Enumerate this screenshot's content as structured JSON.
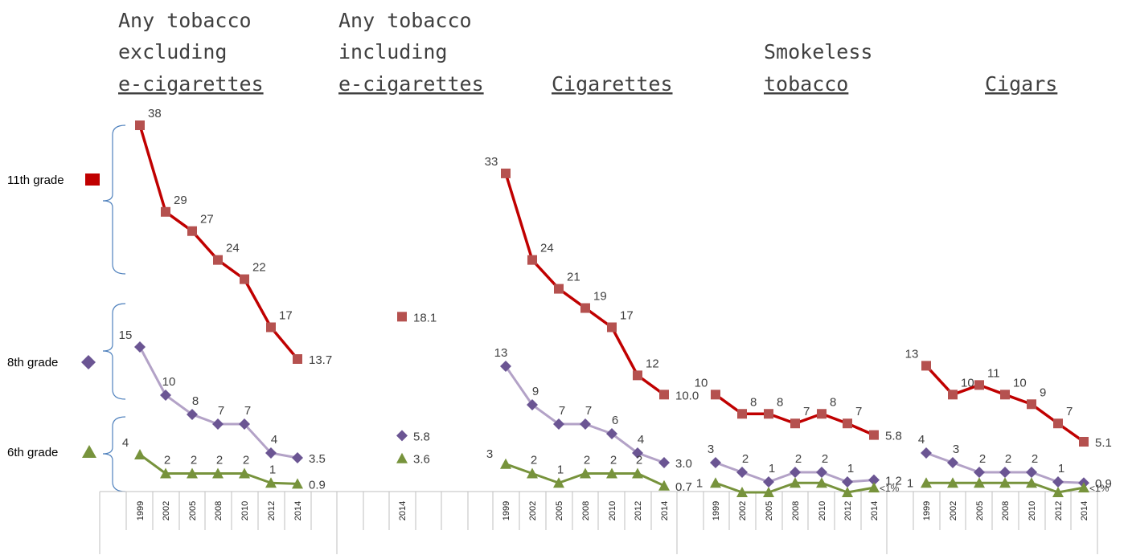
{
  "chart_data": {
    "type": "line",
    "panels": [
      {
        "title_lines": [
          "Any tobacco",
          "excluding"
        ],
        "title_underlined": "e-cigarettes",
        "x": [
          "1999",
          "2002",
          "2005",
          "2008",
          "2010",
          "2012",
          "2014"
        ],
        "series": [
          {
            "name": "11th grade",
            "values": [
              38,
              29,
              27,
              24,
              22,
              17,
              13.7
            ],
            "labels": [
              "38",
              "29",
              "27",
              "24",
              "22",
              "17",
              "13.7"
            ]
          },
          {
            "name": "8th grade",
            "values": [
              15,
              10,
              8,
              7,
              7,
              4,
              3.5
            ],
            "labels": [
              "15",
              "10",
              "8",
              "7",
              "7",
              "4",
              "3.5"
            ]
          },
          {
            "name": "6th grade",
            "values": [
              4,
              2,
              2,
              2,
              2,
              1,
              0.9
            ],
            "labels": [
              "4",
              "2",
              "2",
              "2",
              "2",
              "1",
              "0.9"
            ]
          }
        ]
      },
      {
        "title_lines": [
          "Any tobacco",
          "including"
        ],
        "title_underlined": "e-cigarettes",
        "x": [
          "2014"
        ],
        "series": [
          {
            "name": "11th grade",
            "values": [
              18.1
            ],
            "labels": [
              "18.1"
            ]
          },
          {
            "name": "8th grade",
            "values": [
              5.8
            ],
            "labels": [
              "5.8"
            ]
          },
          {
            "name": "6th grade",
            "values": [
              3.6
            ],
            "labels": [
              "3.6"
            ]
          }
        ]
      },
      {
        "title_lines": [],
        "title_underlined": "Cigarettes",
        "x": [
          "1999",
          "2002",
          "2005",
          "2008",
          "2010",
          "2012",
          "2014"
        ],
        "series": [
          {
            "name": "11th grade",
            "values": [
              33,
              24,
              21,
              19,
              17,
              12,
              10.0
            ],
            "labels": [
              "33",
              "24",
              "21",
              "19",
              "17",
              "12",
              "10.0"
            ]
          },
          {
            "name": "8th grade",
            "values": [
              13,
              9,
              7,
              7,
              6,
              4,
              3.0
            ],
            "labels": [
              "13",
              "9",
              "7",
              "7",
              "6",
              "4",
              "3.0"
            ]
          },
          {
            "name": "6th grade",
            "values": [
              3,
              2,
              1,
              2,
              2,
              2,
              0.7
            ],
            "labels": [
              "3",
              "2",
              "1",
              "2",
              "2",
              "2",
              "0.7"
            ]
          }
        ]
      },
      {
        "title_lines": [
          "Smokeless"
        ],
        "title_underlined": "tobacco",
        "x": [
          "1999",
          "2002",
          "2005",
          "2008",
          "2010",
          "2012",
          "2014"
        ],
        "series": [
          {
            "name": "11th grade",
            "values": [
              10,
              8,
              8,
              7,
              8,
              7,
              5.8
            ],
            "labels": [
              "10",
              "8",
              "8",
              "7",
              "8",
              "7",
              "5.8"
            ]
          },
          {
            "name": "8th grade",
            "values": [
              3,
              2,
              1,
              2,
              2,
              1,
              1.2
            ],
            "labels": [
              "3",
              "2",
              "1",
              "2",
              "2",
              "1",
              "1.2"
            ]
          },
          {
            "name": "6th grade",
            "values": [
              1,
              0,
              0,
              1,
              1,
              0,
              0.5
            ],
            "labels": [
              "1",
              "",
              "",
              "",
              "",
              "",
              "<1%"
            ]
          }
        ]
      },
      {
        "title_lines": [],
        "title_underlined": "Cigars",
        "x": [
          "1999",
          "2002",
          "2005",
          "2008",
          "2010",
          "2012",
          "2014"
        ],
        "series": [
          {
            "name": "11th grade",
            "values": [
              13,
              10,
              11,
              10,
              9,
              7,
              5.1
            ],
            "labels": [
              "13",
              "10",
              "11",
              "10",
              "9",
              "7",
              "5.1"
            ]
          },
          {
            "name": "8th grade",
            "values": [
              4,
              3,
              2,
              2,
              2,
              1,
              0.9
            ],
            "labels": [
              "4",
              "3",
              "2",
              "2",
              "2",
              "1",
              "0.9"
            ]
          },
          {
            "name": "6th grade",
            "values": [
              1,
              1,
              1,
              1,
              1,
              0,
              0.5
            ],
            "labels": [
              "1",
              "",
              "",
              "",
              "",
              "",
              "<1%"
            ]
          }
        ]
      }
    ],
    "legend": [
      {
        "label": "11th grade",
        "marker": "square"
      },
      {
        "label": "8th grade",
        "marker": "diamond"
      },
      {
        "label": "6th grade",
        "marker": "triangle"
      }
    ],
    "colors": {
      "11th grade line": "#c00000",
      "11th grade marker": "#b5514f",
      "8th grade line": "#b3a2c7",
      "8th grade marker": "#6b5593",
      "6th grade line": "#77933c",
      "6th grade marker": "#77933c",
      "bracket": "#4f81bd"
    }
  }
}
